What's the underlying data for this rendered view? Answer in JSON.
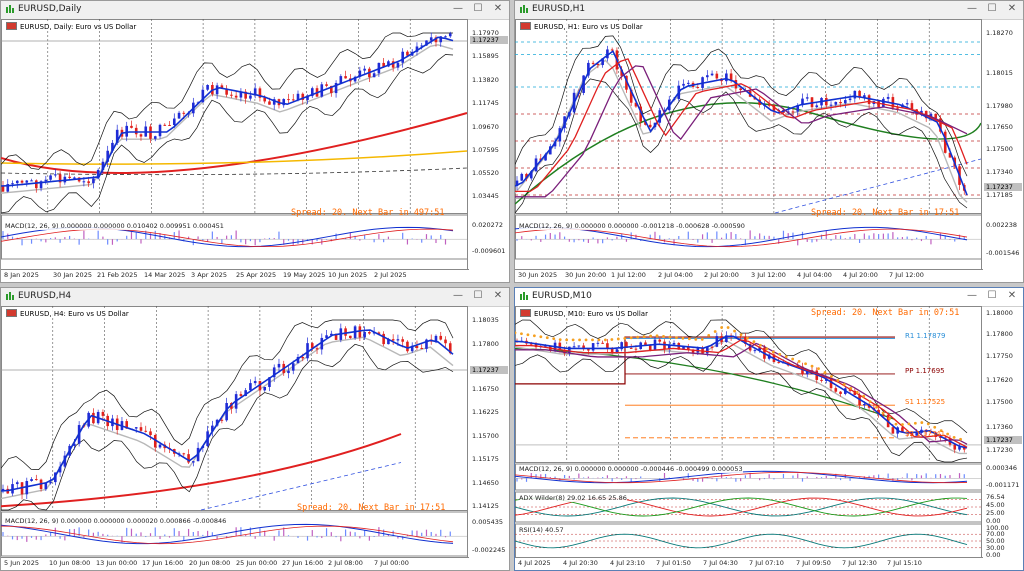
{
  "windows": [
    {
      "id": "daily",
      "title": "EURUSD,Daily",
      "symbol_label": "EURUSD, Daily:  Euro vs US Dollar",
      "spread_text": "Spread: 20. Next Bar in 497:51",
      "macd_label": "MACD(12, 26, 9) 0.000000 0.000000 0.010402 0.009951 0.000451",
      "price_axis": [
        "1.17970",
        "1.15895",
        "1.13820",
        "1.11745",
        "1.09670",
        "1.07595",
        "1.05520",
        "1.03445"
      ],
      "current_price": "1.17237",
      "macd_axis": [
        "0.020272",
        "-0.009601"
      ],
      "time_axis": [
        "8 Jan 2025",
        "30 Jan 2025",
        "21 Feb 2025",
        "14 Mar 2025",
        "3 Apr 2025",
        "25 Apr 2025",
        "19 May 2025",
        "10 Jun 2025",
        "2 Jul 2025"
      ]
    },
    {
      "id": "h1",
      "title": "EURUSD,H1",
      "symbol_label": "EURUSD, H1:  Euro vs US Dollar",
      "spread_text": "Spread: 20. Next Bar in 17:51",
      "macd_label": "MACD(12, 26, 9) 0.000000 0.000000 -0.001218 -0.000628 -0.000590",
      "price_axis": [
        "1.18270",
        "1.18015",
        "1.17980",
        "1.17650",
        "1.17500",
        "1.17340",
        "1.17237",
        "1.17185"
      ],
      "current_price": "1.17237",
      "macd_axis": [
        "0.002238",
        "-0.001546"
      ],
      "time_axis": [
        "30 Jun 2025",
        "30 Jun 20:00",
        "1 Jul 12:00",
        "2 Jul 04:00",
        "2 Jul 20:00",
        "3 Jul 12:00",
        "4 Jul 04:00",
        "4 Jul 20:00",
        "7 Jul 12:00"
      ]
    },
    {
      "id": "h4",
      "title": "EURUSD,H4",
      "symbol_label": "EURUSD, H4:  Euro vs US Dollar",
      "spread_text": "Spread: 20. Next Bar in 17:51",
      "macd_label": "MACD(12, 26, 9) 0.000000 0.000000 0.000020 0.000866 -0.000846",
      "price_axis": [
        "1.18035",
        "1.17800",
        "1.17237",
        "1.16750",
        "1.16225",
        "1.15700",
        "1.15175",
        "1.14650",
        "1.14125"
      ],
      "current_price": "1.17237",
      "macd_axis": [
        "0.005435",
        "-0.002245"
      ],
      "time_axis": [
        "5 Jun 2025",
        "10 Jun 08:00",
        "13 Jun 00:00",
        "17 Jun 16:00",
        "20 Jun 08:00",
        "25 Jun 00:00",
        "27 Jun 16:00",
        "2 Jul 08:00",
        "7 Jul 00:00"
      ]
    },
    {
      "id": "m10",
      "title": "EURUSD,M10",
      "symbol_label": "EURUSD, M10:  Euro vs US Dollar",
      "spread_text": "Spread: 20. Next Bar in 07:51",
      "macd_label": "MACD(12, 26, 9) 0.000000 0.000000 -0.000446 -0.000499 0.000053",
      "adx_label": "ADX Wilder(8) 29.02 16.65 25.86",
      "rsi_label": "RSI(14) 40.57",
      "price_axis": [
        "1.18000",
        "1.17800",
        "1.17750",
        "1.17620",
        "1.17500",
        "1.17360",
        "1.17237",
        "1.17230"
      ],
      "current_price": "1.17237",
      "pivots": [
        {
          "label": "R1 1.17879",
          "color": "#2a8fd8"
        },
        {
          "label": "PP 1.17695",
          "color": "#8b0000"
        },
        {
          "label": "S1 1.17525",
          "color": "#ff6a00"
        },
        {
          "label": "S2 1.17341",
          "color": "#ff6a00"
        }
      ],
      "macd_axis": [
        "0.000346",
        "-0.001171"
      ],
      "adx_axis": [
        "76.54",
        "45.00",
        "25.00",
        "0.00"
      ],
      "rsi_axis": [
        "100.00",
        "70.00",
        "50.00",
        "30.00",
        "0.00"
      ],
      "time_axis": [
        "4 Jul 2025",
        "4 Jul 20:30",
        "4 Jul 23:10",
        "7 Jul 01:50",
        "7 Jul 04:30",
        "7 Jul 07:10",
        "7 Jul 09:50",
        "7 Jul 12:30",
        "7 Jul 15:10"
      ]
    }
  ],
  "colors": {
    "bull": "#1f2bd6",
    "bear": "#e0201c",
    "spread": "#ff6a00",
    "ma_fast": "#1030d0",
    "ma_slow": "#e02020",
    "bollinger": "#000000"
  },
  "icons": {
    "window_icon": "chart-window-icon",
    "minimize": "minimize-icon",
    "maximize": "maximize-icon",
    "close": "close-icon"
  }
}
